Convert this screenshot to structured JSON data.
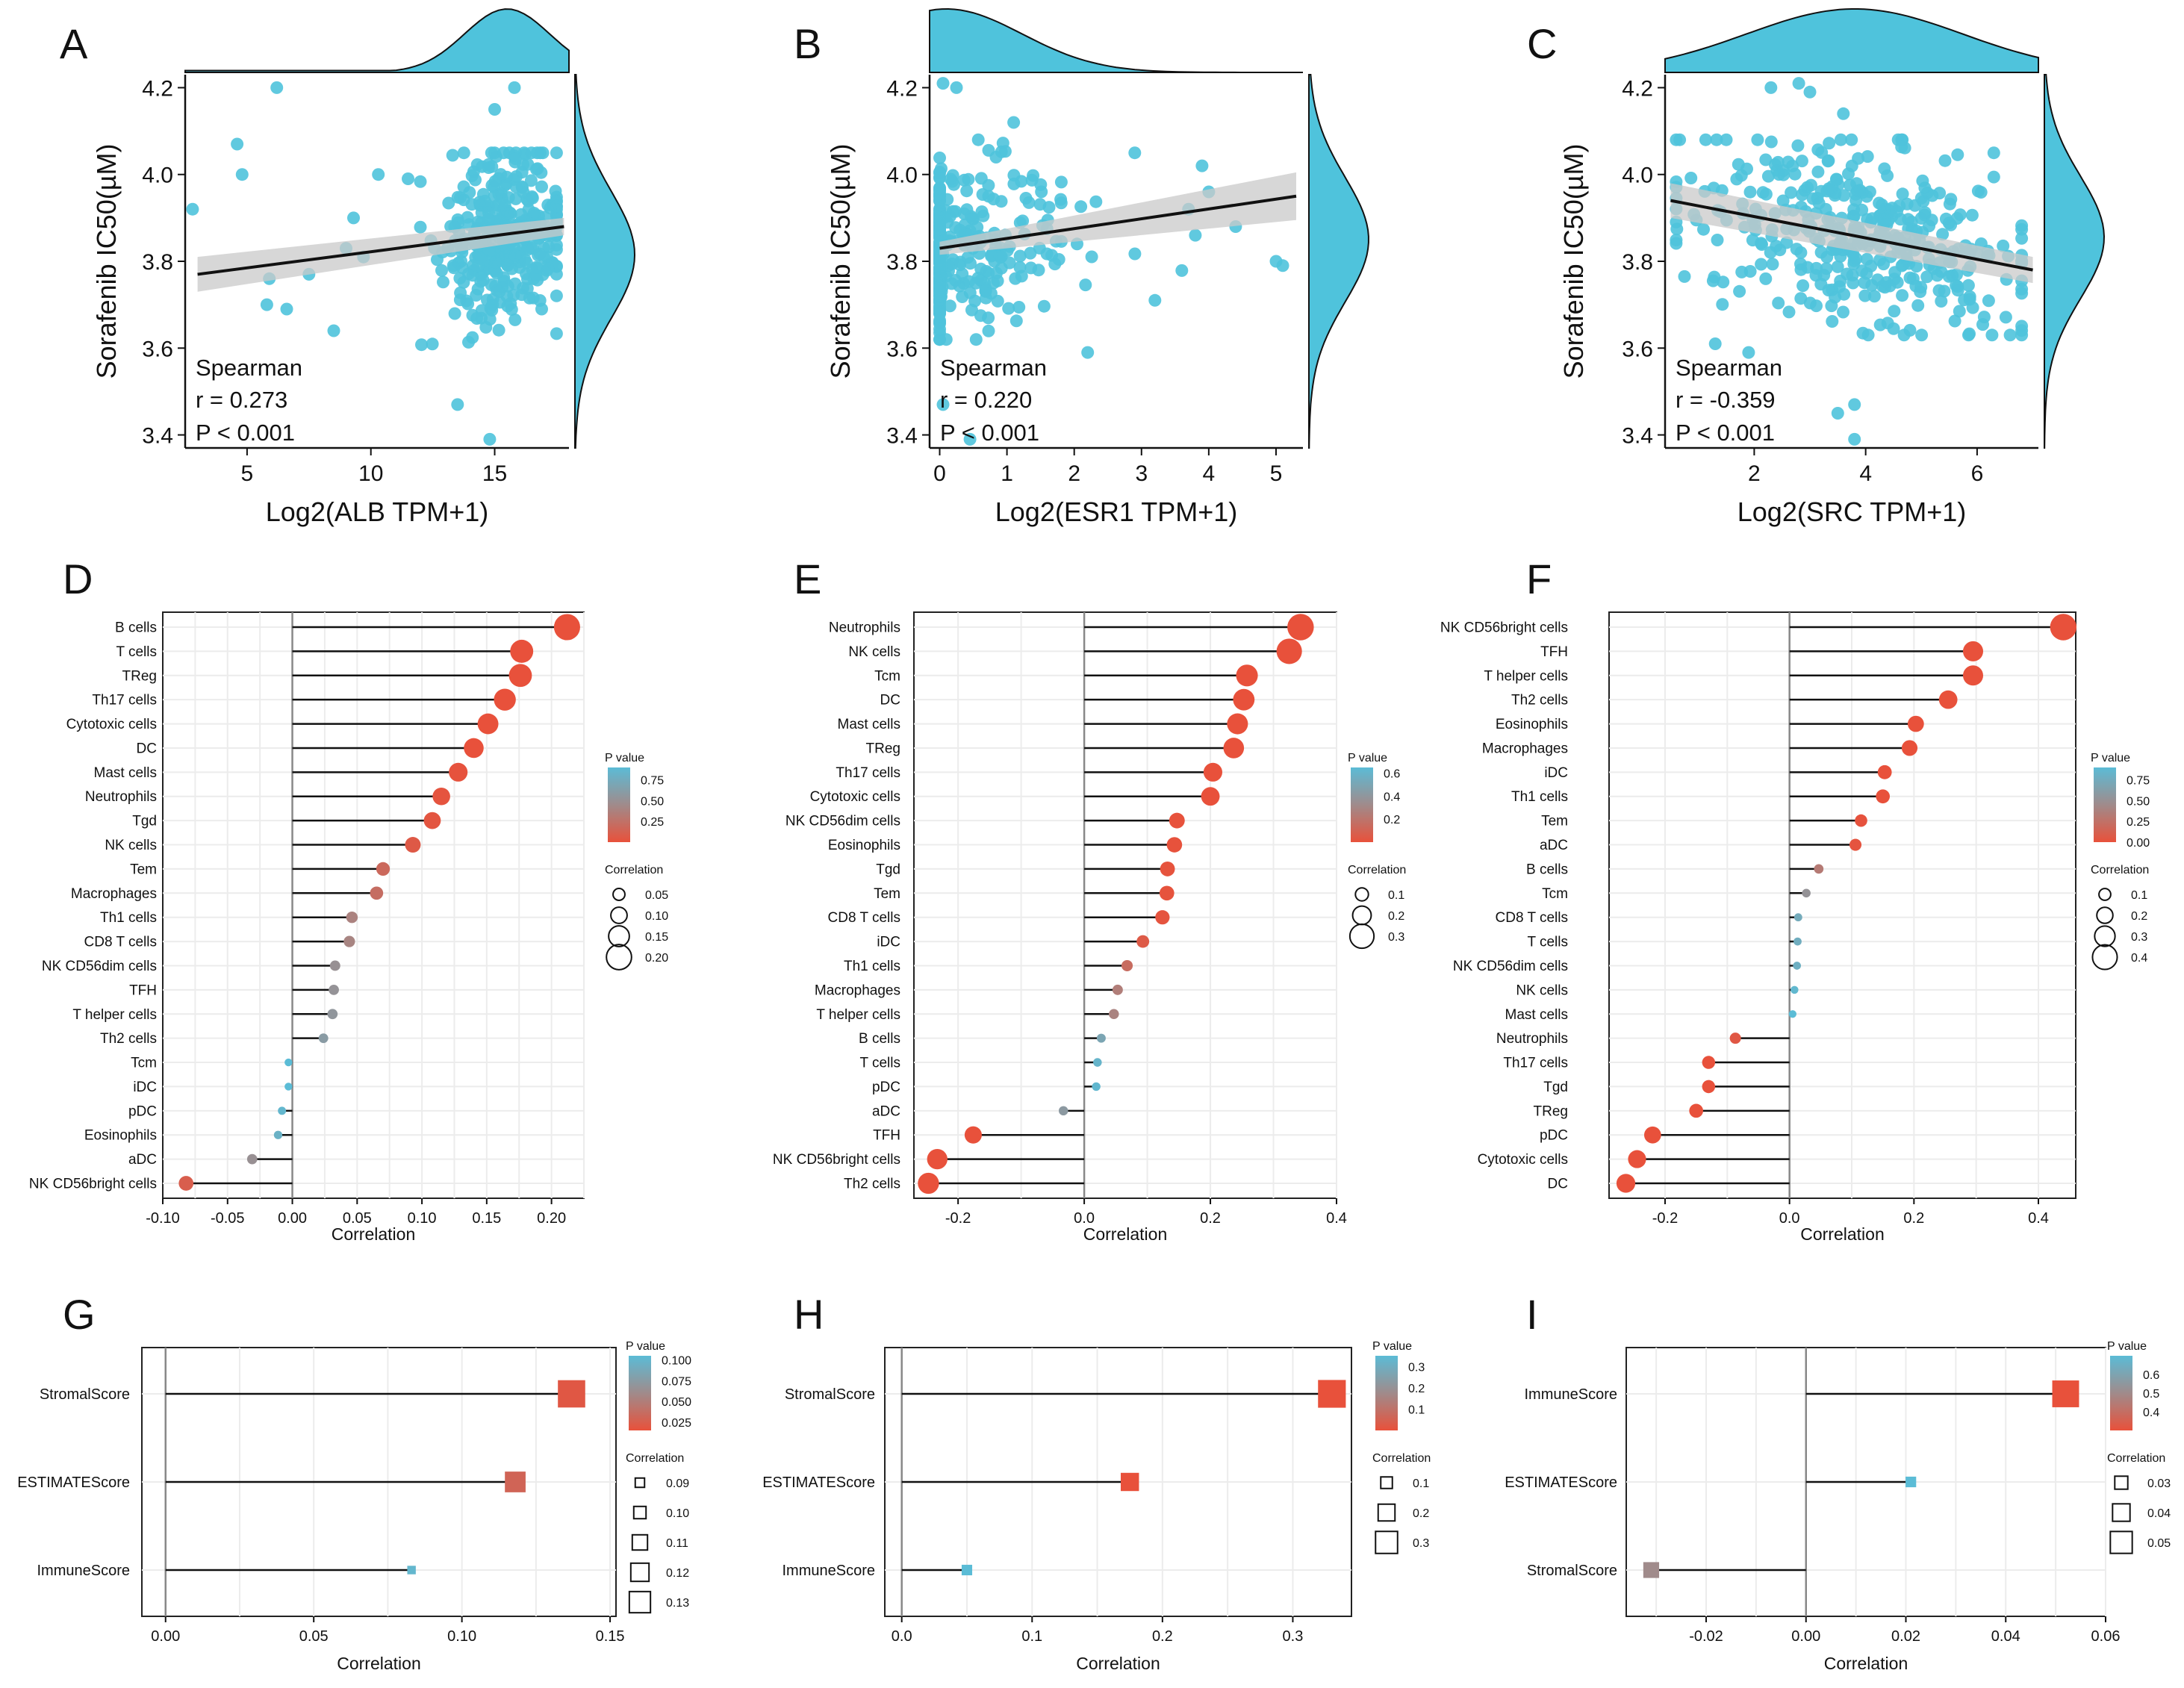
{
  "colors": {
    "point": "#4fc3dc",
    "red": "#e8513b",
    "blue": "#5bbcd6",
    "grey_mid": "#a08b8b",
    "band": "#c9c9c9",
    "grid": "#ececec",
    "black": "#111111"
  },
  "chart_data": [
    {
      "panel": "A",
      "type": "scatter",
      "xlabel": "Log2(ALB TPM+1)",
      "ylabel": "Sorafenib IC50(µM)",
      "xlim": [
        2.5,
        18
      ],
      "ylim": [
        3.37,
        4.23
      ],
      "xticks": [
        5,
        10,
        15
      ],
      "yticks": [
        3.4,
        3.6,
        3.8,
        4.0,
        4.2
      ],
      "ytick_labels": [
        "3.4",
        "3.6",
        "3.8",
        "4.0",
        "4.2"
      ],
      "fit": {
        "x": [
          3,
          17.8
        ],
        "y": [
          3.77,
          3.88
        ]
      },
      "band_halfwidth": [
        0.04,
        0.02
      ],
      "x_range": [
        12,
        17.5
      ],
      "x_mode": 15.5,
      "y_range": [
        3.58,
        4.05
      ],
      "n_points": 350,
      "seed": 11,
      "extra_points": [
        [
          2.8,
          3.92
        ],
        [
          4.6,
          4.07
        ],
        [
          4.8,
          4.0
        ],
        [
          6.2,
          4.2
        ],
        [
          5.9,
          3.76
        ],
        [
          6.6,
          3.69
        ],
        [
          5.8,
          3.7
        ],
        [
          7.5,
          3.77
        ],
        [
          8.5,
          3.64
        ],
        [
          9,
          3.83
        ],
        [
          9.3,
          3.9
        ],
        [
          9.7,
          3.81
        ],
        [
          10.3,
          4.0
        ],
        [
          11.5,
          3.99
        ],
        [
          13.5,
          3.47
        ],
        [
          14.8,
          3.39
        ],
        [
          15,
          4.15
        ],
        [
          15.8,
          4.2
        ]
      ],
      "annotation": {
        "method": "Spearman",
        "r": "r = 0.273",
        "p": "P < 0.001"
      }
    },
    {
      "panel": "B",
      "type": "scatter",
      "xlabel": "Log2(ESR1 TPM+1)",
      "ylabel": "Sorafenib IC50(µM)",
      "xlim": [
        -0.15,
        5.4
      ],
      "ylim": [
        3.37,
        4.23
      ],
      "xticks": [
        0,
        1,
        2,
        3,
        4,
        5
      ],
      "yticks": [
        3.4,
        3.6,
        3.8,
        4.0,
        4.2
      ],
      "ytick_labels": [
        "3.4",
        "3.6",
        "3.8",
        "4.0",
        "4.2"
      ],
      "fit": {
        "x": [
          0,
          5.3
        ],
        "y": [
          3.83,
          3.95
        ]
      },
      "band_halfwidth": [
        0.015,
        0.055
      ],
      "x_range": [
        0,
        3.6
      ],
      "x_mode": 0.1,
      "y_range": [
        3.62,
        4.08
      ],
      "n_points": 330,
      "seed": 23,
      "extra_points": [
        [
          0.05,
          4.21
        ],
        [
          0.25,
          4.2
        ],
        [
          0.05,
          3.47
        ],
        [
          0.45,
          3.39
        ],
        [
          2.2,
          3.59
        ],
        [
          3.7,
          3.92
        ],
        [
          3.8,
          3.86
        ],
        [
          4.4,
          3.88
        ],
        [
          5.1,
          3.79
        ],
        [
          5.0,
          3.8
        ],
        [
          3.9,
          4.02
        ],
        [
          4.0,
          3.96
        ],
        [
          1.1,
          4.12
        ],
        [
          2.9,
          4.05
        ],
        [
          3.2,
          3.71
        ]
      ],
      "annotation": {
        "method": "Spearman",
        "r": "r = 0.220",
        "p": "P < 0.001"
      }
    },
    {
      "panel": "C",
      "type": "scatter",
      "xlabel": "Log2(SRC TPM+1)",
      "ylabel": "Sorafenib IC50(µM)",
      "xlim": [
        0.4,
        7.1
      ],
      "ylim": [
        3.37,
        4.23
      ],
      "xticks": [
        2,
        4,
        6
      ],
      "yticks": [
        3.4,
        3.6,
        3.8,
        4.0,
        4.2
      ],
      "ytick_labels": [
        "3.4",
        "3.6",
        "3.8",
        "4.0",
        "4.2"
      ],
      "fit": {
        "x": [
          0.5,
          7.0
        ],
        "y": [
          3.94,
          3.78
        ]
      },
      "band_halfwidth": [
        0.04,
        0.03
      ],
      "x_range": [
        0.6,
        6.8
      ],
      "x_mode": 3.8,
      "y_range": [
        3.63,
        4.08
      ],
      "n_points": 390,
      "seed": 37,
      "extra_points": [
        [
          1.3,
          3.61
        ],
        [
          1.9,
          3.59
        ],
        [
          2.8,
          4.21
        ],
        [
          3.0,
          4.19
        ],
        [
          3.6,
          4.14
        ],
        [
          2.3,
          4.2
        ],
        [
          3.8,
          3.47
        ],
        [
          3.8,
          3.39
        ],
        [
          3.5,
          3.45
        ],
        [
          6.3,
          4.05
        ],
        [
          6.8,
          3.8
        ]
      ],
      "annotation": {
        "method": "Spearman",
        "r": "r = -0.359",
        "p": "P < 0.001"
      }
    },
    {
      "panel": "D",
      "type": "lollipop",
      "marker": "circle",
      "xlabel": "Correlation",
      "xlim": [
        -0.1,
        0.225
      ],
      "xticks": [
        -0.1,
        -0.05,
        0.0,
        0.05,
        0.1,
        0.15,
        0.2
      ],
      "xtick_labels": [
        "-0.10",
        "-0.05",
        "0.00",
        "0.05",
        "0.10",
        "0.15",
        "0.20"
      ],
      "categories": [
        "B cells",
        "T cells",
        "TReg",
        "Th17 cells",
        "Cytotoxic cells",
        "DC",
        "Mast cells",
        "Neutrophils",
        "Tgd",
        "NK cells",
        "Tem",
        "Macrophages",
        "Th1 cells",
        "CD8 T cells",
        "NK CD56dim cells",
        "TFH",
        "T helper cells",
        "Th2 cells",
        "Tcm",
        "iDC",
        "pDC",
        "Eosinophils",
        "aDC",
        "NK CD56bright cells"
      ],
      "values": [
        0.212,
        0.177,
        0.176,
        0.164,
        0.151,
        0.14,
        0.128,
        0.115,
        0.108,
        0.093,
        0.07,
        0.065,
        0.046,
        0.044,
        0.033,
        0.032,
        0.031,
        0.024,
        -0.003,
        -0.003,
        -0.008,
        -0.011,
        -0.031,
        -0.082
      ],
      "pvalues": [
        0.0,
        0.0,
        0.0,
        0.0,
        0.0,
        0.0,
        0.01,
        0.02,
        0.03,
        0.06,
        0.18,
        0.22,
        0.38,
        0.4,
        0.5,
        0.52,
        0.55,
        0.6,
        0.93,
        0.93,
        0.85,
        0.8,
        0.5,
        0.1
      ],
      "pvalue_legend": {
        "title": "P value",
        "range": [
          0.0,
          0.9
        ],
        "ticks": [
          0.75,
          0.5,
          0.25
        ],
        "labels": [
          "0.75",
          "0.50",
          "0.25"
        ]
      },
      "size_legend": {
        "title": "Correlation",
        "values": [
          0.05,
          0.1,
          0.15,
          0.2
        ],
        "labels": [
          "0.05",
          "0.10",
          "0.15",
          "0.20"
        ],
        "range": [
          0.0,
          0.22
        ]
      }
    },
    {
      "panel": "E",
      "type": "lollipop",
      "marker": "circle",
      "xlabel": "Correlation",
      "xlim": [
        -0.27,
        0.4
      ],
      "xticks": [
        -0.2,
        0.0,
        0.2,
        0.4
      ],
      "xtick_labels": [
        "-0.2",
        "0.0",
        "0.2",
        "0.4"
      ],
      "categories": [
        "Neutrophils",
        "NK cells",
        "Tcm",
        "DC",
        "Mast cells",
        "TReg",
        "Th17 cells",
        "Cytotoxic cells",
        "NK CD56dim cells",
        "Eosinophils",
        "Tgd",
        "Tem",
        "CD8 T cells",
        "iDC",
        "Th1 cells",
        "Macrophages",
        "T helper cells",
        "B cells",
        "T cells",
        "pDC",
        "aDC",
        "TFH",
        "NK CD56bright cells",
        "Th2 cells"
      ],
      "values": [
        0.343,
        0.325,
        0.258,
        0.253,
        0.243,
        0.237,
        0.204,
        0.2,
        0.147,
        0.143,
        0.132,
        0.131,
        0.124,
        0.093,
        0.068,
        0.053,
        0.047,
        0.027,
        0.021,
        0.019,
        -0.033,
        -0.176,
        -0.233,
        -0.247
      ],
      "pvalues": [
        0.0,
        0.0,
        0.0,
        0.0,
        0.0,
        0.0,
        0.0,
        0.0,
        0.005,
        0.005,
        0.01,
        0.01,
        0.015,
        0.05,
        0.15,
        0.25,
        0.28,
        0.5,
        0.6,
        0.62,
        0.42,
        0.0,
        0.0,
        0.0
      ],
      "pvalue_legend": {
        "title": "P value",
        "range": [
          0.0,
          0.65
        ],
        "ticks": [
          0.6,
          0.4,
          0.2
        ],
        "labels": [
          "0.6",
          "0.4",
          "0.2"
        ]
      },
      "size_legend": {
        "title": "Correlation",
        "values": [
          0.1,
          0.2,
          0.3
        ],
        "labels": [
          "0.1",
          "0.2",
          "0.3"
        ],
        "range": [
          0.0,
          0.35
        ]
      }
    },
    {
      "panel": "F",
      "type": "lollipop",
      "marker": "circle",
      "xlabel": "Correlation",
      "xlim": [
        -0.29,
        0.46
      ],
      "xticks": [
        -0.2,
        0.0,
        0.2,
        0.4
      ],
      "xtick_labels": [
        "-0.2",
        "0.0",
        "0.2",
        "0.4"
      ],
      "categories": [
        "NK CD56bright cells",
        "TFH",
        "T helper cells",
        "Th2 cells",
        "Eosinophils",
        "Macrophages",
        "iDC",
        "Th1 cells",
        "Tem",
        "aDC",
        "B cells",
        "Tcm",
        "CD8 T cells",
        "T cells",
        "NK CD56dim cells",
        "NK cells",
        "Mast cells",
        "Neutrophils",
        "Th17 cells",
        "Tgd",
        "TReg",
        "pDC",
        "Cytotoxic cells",
        "DC"
      ],
      "values": [
        0.44,
        0.295,
        0.295,
        0.255,
        0.203,
        0.193,
        0.153,
        0.15,
        0.115,
        0.106,
        0.047,
        0.027,
        0.014,
        0.013,
        0.012,
        0.008,
        0.005,
        -0.087,
        -0.13,
        -0.13,
        -0.15,
        -0.22,
        -0.245,
        -0.263
      ],
      "pvalues": [
        0.0,
        0.0,
        0.0,
        0.0,
        0.0,
        0.0,
        0.0,
        0.0,
        0.01,
        0.02,
        0.32,
        0.52,
        0.74,
        0.76,
        0.78,
        0.86,
        0.9,
        0.05,
        0.0,
        0.0,
        0.0,
        0.0,
        0.0,
        0.0
      ],
      "pvalue_legend": {
        "title": "P value",
        "range": [
          0.0,
          0.9
        ],
        "ticks": [
          0.75,
          0.5,
          0.25,
          0.0
        ],
        "labels": [
          "0.75",
          "0.50",
          "0.25",
          "0.00"
        ]
      },
      "size_legend": {
        "title": "Correlation",
        "values": [
          0.1,
          0.2,
          0.3,
          0.4
        ],
        "labels": [
          "0.1",
          "0.2",
          "0.3",
          "0.4"
        ],
        "range": [
          0.0,
          0.45
        ]
      }
    },
    {
      "panel": "G",
      "type": "lollipop",
      "marker": "square",
      "xlabel": "Correlation",
      "xlim": [
        -0.008,
        0.152
      ],
      "xticks": [
        0.0,
        0.05,
        0.1,
        0.15
      ],
      "xtick_labels": [
        "0.00",
        "0.05",
        "0.10",
        "0.15"
      ],
      "categories": [
        "StromalScore",
        "ESTIMATEScore",
        "ImmuneScore"
      ],
      "values": [
        0.137,
        0.118,
        0.083
      ],
      "pvalues": [
        0.02,
        0.03,
        0.1
      ],
      "pvalue_legend": {
        "title": "P value",
        "range": [
          0.015,
          0.105
        ],
        "ticks": [
          0.1,
          0.075,
          0.05,
          0.025
        ],
        "labels": [
          "0.100",
          "0.075",
          "0.050",
          "0.025"
        ]
      },
      "size_legend": {
        "title": "Correlation",
        "values": [
          0.09,
          0.1,
          0.11,
          0.12,
          0.13
        ],
        "labels": [
          "0.09",
          "0.10",
          "0.11",
          "0.12",
          "0.13"
        ],
        "range": [
          0.08,
          0.14
        ]
      }
    },
    {
      "panel": "H",
      "type": "lollipop",
      "marker": "square",
      "xlabel": "Correlation",
      "xlim": [
        -0.013,
        0.345
      ],
      "xticks": [
        0.0,
        0.1,
        0.2,
        0.3
      ],
      "xtick_labels": [
        "0.0",
        "0.1",
        "0.2",
        "0.3"
      ],
      "categories": [
        "StromalScore",
        "ESTIMATEScore",
        "ImmuneScore"
      ],
      "values": [
        0.33,
        0.175,
        0.05
      ],
      "pvalues": [
        0.0,
        0.0,
        0.35
      ],
      "pvalue_legend": {
        "title": "P value",
        "range": [
          0.0,
          0.35
        ],
        "ticks": [
          0.3,
          0.2,
          0.1
        ],
        "labels": [
          "0.3",
          "0.2",
          "0.1"
        ]
      },
      "size_legend": {
        "title": "Correlation",
        "values": [
          0.1,
          0.2,
          0.3
        ],
        "labels": [
          "0.1",
          "0.2",
          "0.3"
        ],
        "range": [
          0.0,
          0.34
        ]
      }
    },
    {
      "panel": "I",
      "type": "lollipop",
      "marker": "square",
      "xlabel": "Correlation",
      "xlim": [
        -0.036,
        0.06
      ],
      "xticks": [
        -0.02,
        0.0,
        0.02,
        0.04,
        0.06
      ],
      "xtick_labels": [
        "-0.02",
        "0.00",
        "0.02",
        "0.04",
        "0.06"
      ],
      "categories": [
        "ImmuneScore",
        "ESTIMATEScore",
        "StromalScore"
      ],
      "values": [
        0.052,
        0.021,
        -0.031
      ],
      "pvalues": [
        0.3,
        0.7,
        0.5
      ],
      "pvalue_legend": {
        "title": "P value",
        "range": [
          0.3,
          0.7
        ],
        "ticks": [
          0.6,
          0.5,
          0.4
        ],
        "labels": [
          "0.6",
          "0.5",
          "0.4"
        ]
      },
      "size_legend": {
        "title": "Correlation",
        "values": [
          0.03,
          0.04,
          0.05
        ],
        "labels": [
          "0.03",
          "0.04",
          "0.05"
        ],
        "range": [
          0.015,
          0.055
        ]
      }
    }
  ]
}
